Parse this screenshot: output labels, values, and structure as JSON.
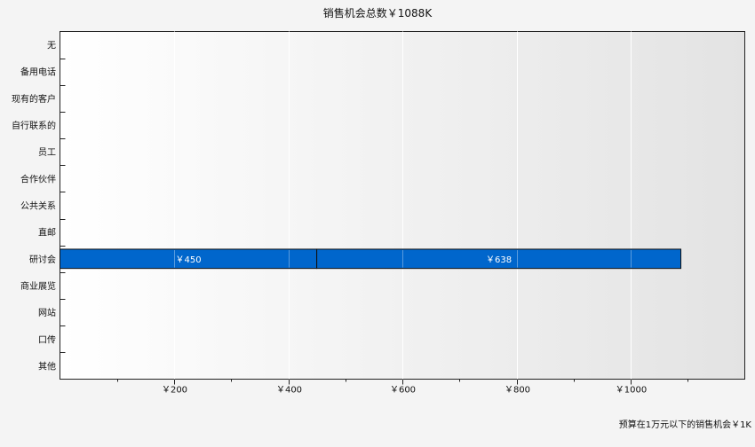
{
  "chart_data": {
    "type": "bar",
    "orientation": "horizontal",
    "stacked": true,
    "title": "销售机会总数￥1088K",
    "footnote": "预算在1万元以下的销售机会￥1K",
    "categories": [
      "无",
      "备用电话",
      "现有的客户",
      "自行联系的",
      "员工",
      "合作伙伴",
      "公共关系",
      "直邮",
      "研讨会",
      "商业展览",
      "网站",
      "口传",
      "其他"
    ],
    "series": [
      {
        "values": [
          0,
          0,
          0,
          0,
          0,
          0,
          0,
          0,
          450,
          0,
          0,
          0,
          0
        ],
        "labels": [
          "",
          "",
          "",
          "",
          "",
          "",
          "",
          "",
          "￥450",
          "",
          "",
          "",
          ""
        ]
      },
      {
        "values": [
          0,
          0,
          0,
          0,
          0,
          0,
          0,
          0,
          638,
          0,
          0,
          0,
          0
        ],
        "labels": [
          "",
          "",
          "",
          "",
          "",
          "",
          "",
          "",
          "￥638",
          "",
          "",
          "",
          ""
        ]
      }
    ],
    "xlim": [
      0,
      1200
    ],
    "x_ticks": [
      200,
      400,
      600,
      800,
      1000
    ],
    "x_tick_labels": [
      "￥200",
      "￥400",
      "￥600",
      "￥800",
      "￥1000"
    ],
    "grid": true,
    "colors": {
      "bar": "#0066cc",
      "bar_border": "#111111",
      "grid": "#ffffff",
      "label": "#ffffff"
    }
  }
}
